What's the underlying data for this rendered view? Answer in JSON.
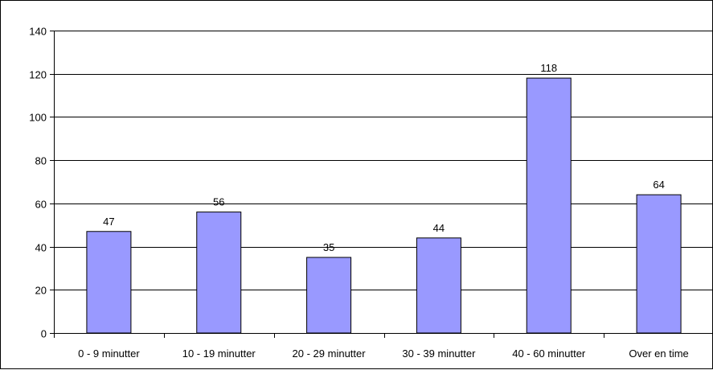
{
  "chart_data": {
    "type": "bar",
    "categories": [
      "0 - 9 minutter",
      "10 - 19 minutter",
      "20 - 29 minutter",
      "30 - 39 minutter",
      "40 - 60 minutter",
      "Over en time"
    ],
    "values": [
      47,
      56,
      35,
      44,
      118,
      64
    ],
    "ylim": [
      0,
      140
    ],
    "yticks": [
      0,
      20,
      40,
      60,
      80,
      100,
      120,
      140
    ],
    "grid": true,
    "bar_color": "#9999ff",
    "bar_edge_color": "#000000",
    "title": "",
    "xlabel": "",
    "ylabel": ""
  }
}
